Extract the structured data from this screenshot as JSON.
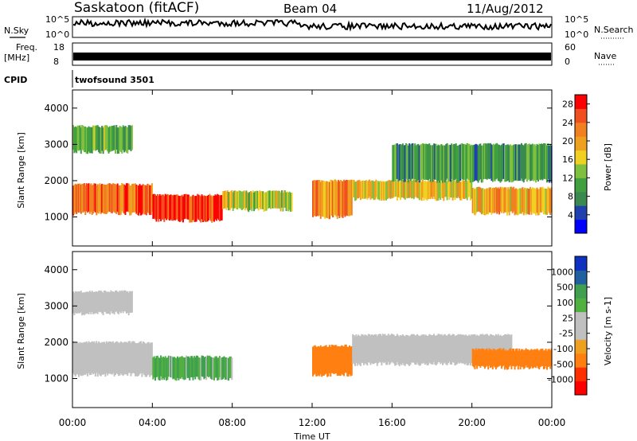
{
  "header": {
    "title": "Saskatoon (fitACF)",
    "beam": "Beam 04",
    "date": "11/Aug/2012"
  },
  "side_labels": {
    "nsky": "N.Sky",
    "freq": "Freq.",
    "freq_unit": "[MHz]",
    "cpid": "CPID",
    "nsearch": "N.Search",
    "nave": "Nave"
  },
  "small_ticks": {
    "nsky_top": "10^5",
    "nsky_bottom": "10^0",
    "freq_top": "18",
    "freq_bottom": "8",
    "nsearch_top": "10^5",
    "nsearch_bottom": "10^0",
    "nave_top": "60",
    "nave_bottom": "0"
  },
  "cpid_value": "twofsound 3501",
  "colors": {
    "power_scale": [
      "#0000ff",
      "#2040b0",
      "#3a8a50",
      "#40a040",
      "#80c040",
      "#f0d020",
      "#f0a020",
      "#f08020",
      "#f05020",
      "#ff0000"
    ],
    "velocity_scale": [
      "#ff0000",
      "#ff3000",
      "#ff8010",
      "#f0a020",
      "#c0c0c0",
      "#c0c0c0",
      "#50b040",
      "#40a050",
      "#2060a0",
      "#1030c0"
    ],
    "ground_scatter": "#c0c0c0"
  },
  "chart_data": [
    {
      "type": "heatmap",
      "name_printed": "",
      "xlabel": "Time UT",
      "ylabel": "Slant Range [km]",
      "x_ticks": [
        "00:00",
        "04:00",
        "08:00",
        "12:00",
        "16:00",
        "20:00",
        "00:00"
      ],
      "x_range_hours": [
        0,
        24
      ],
      "y_ticks": [
        "1000",
        "2000",
        "3000",
        "4000"
      ],
      "ylim": [
        200,
        4500
      ],
      "colorbar": {
        "label": "Power [dB]",
        "ticks": [
          "4",
          "8",
          "12",
          "16",
          "20",
          "24",
          "28"
        ],
        "range": [
          0,
          30
        ]
      },
      "bands": [
        {
          "t0": 0,
          "t1": 4,
          "r0": 1100,
          "r1": 1900,
          "level": 22
        },
        {
          "t0": 4,
          "t1": 7.5,
          "r0": 900,
          "r1": 1600,
          "level": 26
        },
        {
          "t0": 7.5,
          "t1": 11,
          "r0": 1200,
          "r1": 1700,
          "level": 14
        },
        {
          "t0": 12,
          "t1": 14,
          "r0": 1000,
          "r1": 2000,
          "level": 20
        },
        {
          "t0": 14,
          "t1": 20,
          "r0": 1500,
          "r1": 2000,
          "level": 16
        },
        {
          "t0": 20,
          "t1": 24,
          "r0": 1100,
          "r1": 1800,
          "level": 18
        },
        {
          "t0": 0,
          "t1": 3,
          "r0": 2800,
          "r1": 3500,
          "level": 10
        },
        {
          "t0": 16,
          "t1": 24,
          "r0": 2000,
          "r1": 3000,
          "level": 8
        }
      ]
    },
    {
      "type": "heatmap",
      "name_printed": "",
      "xlabel": "Time UT",
      "ylabel": "Slant Range [km]",
      "x_ticks": [
        "00:00",
        "04:00",
        "08:00",
        "12:00",
        "16:00",
        "20:00",
        "00:00"
      ],
      "x_range_hours": [
        0,
        24
      ],
      "y_ticks": [
        "1000",
        "2000",
        "3000",
        "4000"
      ],
      "ylim": [
        200,
        4500
      ],
      "colorbar": {
        "label": "Velocity [m s-1]",
        "ticks": [
          "1000",
          "500",
          "100",
          "25",
          "-25",
          "-100",
          "-500",
          "-1000"
        ]
      },
      "bands": [
        {
          "t0": 0,
          "t1": 4,
          "r0": 1100,
          "r1": 2000,
          "level": "ground"
        },
        {
          "t0": 4,
          "t1": 8,
          "r0": 1000,
          "r1": 1600,
          "level": 100
        },
        {
          "t0": 12,
          "t1": 14,
          "r0": 1100,
          "r1": 1900,
          "level": -300
        },
        {
          "t0": 14,
          "t1": 22,
          "r0": 1400,
          "r1": 2200,
          "level": "ground"
        },
        {
          "t0": 20,
          "t1": 24,
          "r0": 1300,
          "r1": 1800,
          "level": -200
        },
        {
          "t0": 0,
          "t1": 3,
          "r0": 2800,
          "r1": 3400,
          "level": "ground"
        }
      ]
    }
  ]
}
